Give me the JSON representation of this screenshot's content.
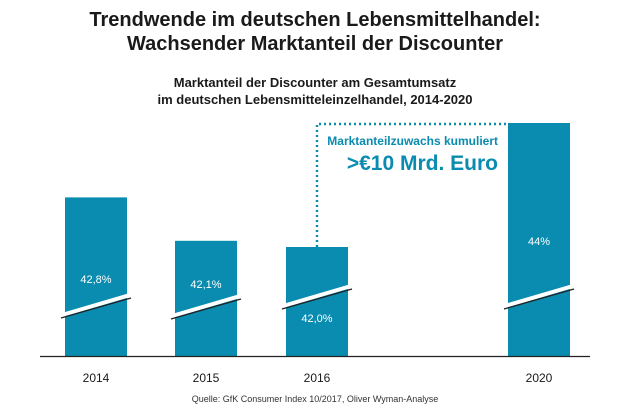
{
  "title": {
    "line1": "Trendwende im deutschen Lebensmittelhandel:",
    "line2": "Wachsender Marktanteil der Discounter"
  },
  "subtitle": {
    "line1": "Marktanteil der Discounter am Gesamtumsatz",
    "line2": "im deutschen Lebensmitteleinzelhandel, 2014-2020"
  },
  "colors": {
    "bar": "#0a8bb0",
    "axis": "#222222",
    "callout": "#0a8bb0",
    "bar_label": "#ffffff"
  },
  "chart_data": {
    "type": "bar",
    "categories": [
      "2014",
      "2015",
      "2016",
      "2020"
    ],
    "values": [
      42.8,
      42.1,
      42.0,
      44
    ],
    "data_labels": [
      "42,8%",
      "42,1%",
      "42,0%",
      "44%"
    ],
    "axis_break": true,
    "ylabel": "",
    "xlabel": "",
    "annotation": {
      "line1": "Marktanteilzuwachs kumuliert",
      "line2": ">€10 Mrd. Euro",
      "from_category": "2016",
      "to_category": "2020"
    }
  },
  "source": "Quelle: GfK Consumer Index 10/2017, Oliver Wyman-Analyse"
}
